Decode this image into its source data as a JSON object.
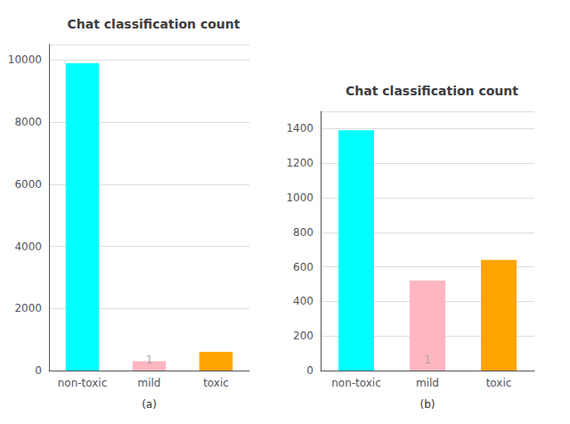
{
  "chart_data": [
    {
      "type": "bar",
      "title": "Chat classification count",
      "categories": [
        "non-toxic",
        "mild",
        "toxic"
      ],
      "values": [
        9900,
        300,
        600
      ],
      "colors": [
        "#00FFFF",
        "#FFB6C1",
        "#FFA500"
      ],
      "ylim": [
        0,
        10500
      ],
      "yticks": [
        0,
        2000,
        4000,
        6000,
        8000,
        10000
      ],
      "grid": true,
      "xlabel": "(a)",
      "annotations": [
        {
          "text": "1",
          "category": "mild"
        }
      ]
    },
    {
      "type": "bar",
      "title": "Chat classification count",
      "categories": [
        "non-toxic",
        "mild",
        "toxic"
      ],
      "values": [
        1390,
        520,
        640
      ],
      "colors": [
        "#00FFFF",
        "#FFB6C1",
        "#FFA500"
      ],
      "ylim": [
        0,
        1500
      ],
      "yticks": [
        0,
        200,
        400,
        600,
        800,
        1000,
        1200,
        1400
      ],
      "grid": true,
      "xlabel": "(b)",
      "annotations": [
        {
          "text": "1",
          "category": "mild"
        }
      ]
    }
  ]
}
